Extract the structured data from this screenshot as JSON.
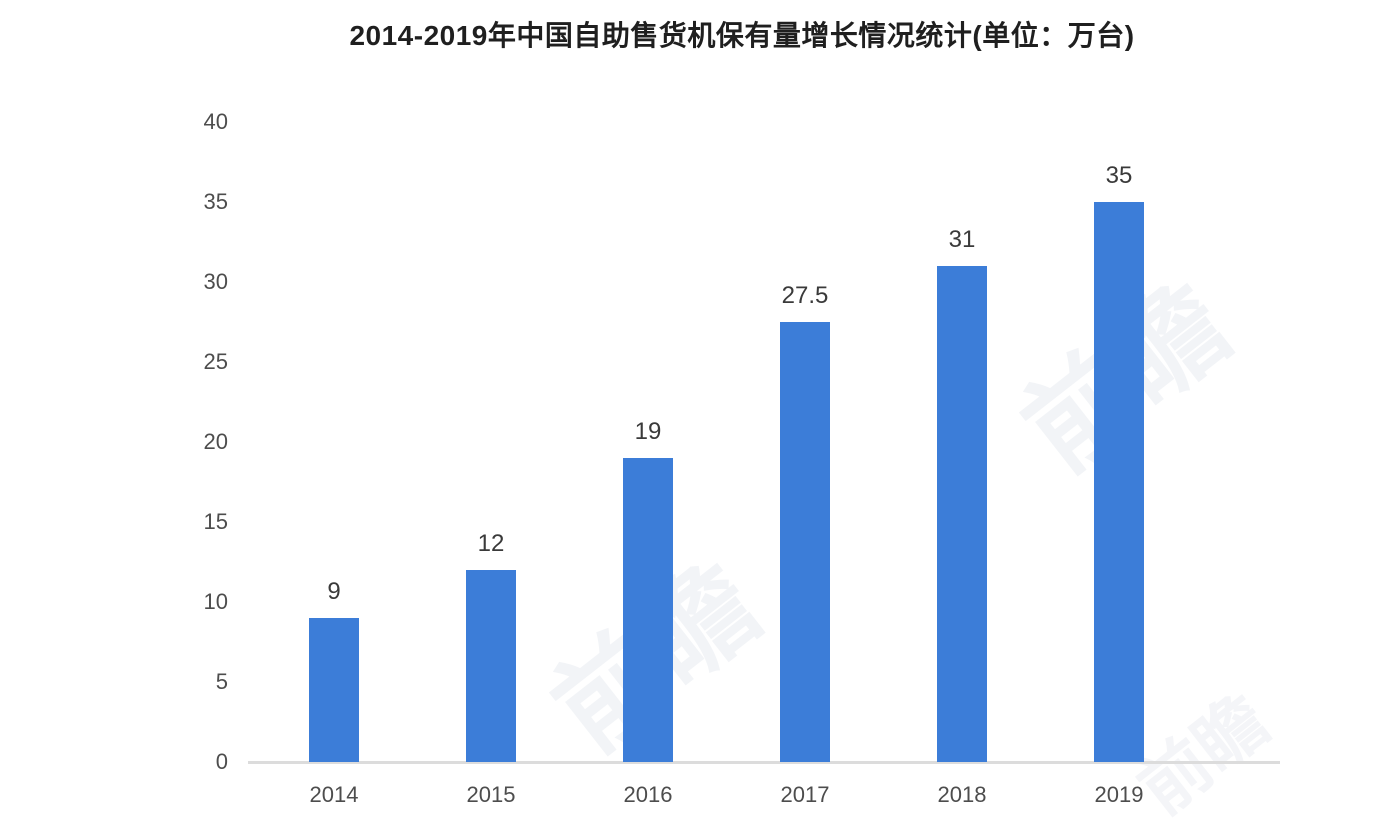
{
  "title": "2014-2019年中国自助售货机保有量增长情况统计(单位：万台)",
  "watermark_text": "前瞻",
  "colors": {
    "bar": "#3c7dd8",
    "axis_line": "#dcdcdc",
    "title_text": "#1f1f1f",
    "tick_text": "#4d4d4d",
    "value_label_text": "#3a3a3a",
    "background": "#ffffff"
  },
  "chart_data": {
    "type": "bar",
    "title": "2014-2019年中国自助售货机保有量增长情况统计(单位：万台)",
    "categories": [
      "2014",
      "2015",
      "2016",
      "2017",
      "2018",
      "2019"
    ],
    "values": [
      9,
      12,
      19,
      27.5,
      31,
      35
    ],
    "value_labels": [
      "9",
      "12",
      "19",
      "27.5",
      "31",
      "35"
    ],
    "xlabel": "",
    "ylabel": "",
    "ylim": [
      0,
      40
    ],
    "yticks": [
      0,
      5,
      10,
      15,
      20,
      25,
      30,
      35,
      40
    ],
    "ytick_labels": [
      "0",
      "5",
      "10",
      "15",
      "20",
      "25",
      "30",
      "35",
      "40"
    ],
    "grid": false,
    "legend_position": "none",
    "bar_color": "#3c7dd8",
    "unit": "万台"
  }
}
